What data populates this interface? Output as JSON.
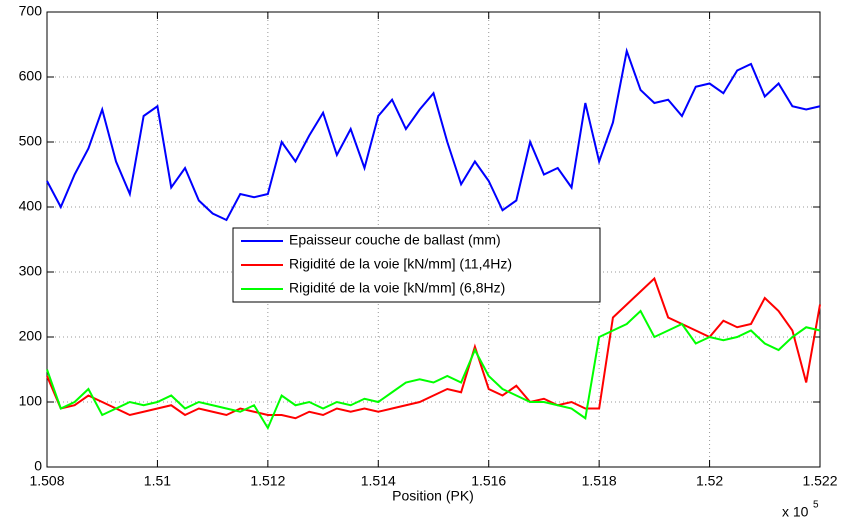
{
  "chart_data": {
    "type": "line",
    "xlabel": "Position (PK)",
    "x_multiplier": {
      "base": "x 10",
      "exponent": "5"
    },
    "x": [
      1.508,
      1.50825,
      1.5085,
      1.50875,
      1.509,
      1.50925,
      1.5095,
      1.50975,
      1.51,
      1.51025,
      1.5105,
      1.51075,
      1.511,
      1.51125,
      1.5115,
      1.51175,
      1.512,
      1.51225,
      1.5125,
      1.51275,
      1.513,
      1.51325,
      1.5135,
      1.51375,
      1.514,
      1.51425,
      1.5145,
      1.51475,
      1.515,
      1.51525,
      1.5155,
      1.51575,
      1.516,
      1.51625,
      1.5165,
      1.51675,
      1.517,
      1.51725,
      1.5175,
      1.51775,
      1.518,
      1.51825,
      1.5185,
      1.51875,
      1.519,
      1.51925,
      1.5195,
      1.51975,
      1.52,
      1.52025,
      1.5205,
      1.52075,
      1.521,
      1.52125,
      1.5215,
      1.52175,
      1.522
    ],
    "series": [
      {
        "name": "Epaisseur couche de ballast (mm)",
        "color": "#0000ff",
        "values": [
          440,
          400,
          450,
          490,
          550,
          470,
          420,
          540,
          555,
          430,
          460,
          410,
          390,
          380,
          420,
          415,
          420,
          500,
          470,
          510,
          545,
          480,
          520,
          460,
          540,
          565,
          520,
          550,
          575,
          500,
          435,
          470,
          440,
          395,
          410,
          500,
          450,
          460,
          430,
          560,
          470,
          530,
          640,
          580,
          560,
          565,
          540,
          585,
          590,
          575,
          610,
          620,
          570,
          590,
          555,
          550,
          555
        ]
      },
      {
        "name": "Rigidité de la voie [kN/mm] (11,4Hz)",
        "color": "#ff0000",
        "values": [
          140,
          90,
          95,
          110,
          100,
          90,
          80,
          85,
          90,
          95,
          80,
          90,
          85,
          80,
          90,
          85,
          80,
          80,
          75,
          85,
          80,
          90,
          85,
          90,
          85,
          90,
          95,
          100,
          110,
          120,
          115,
          185,
          120,
          110,
          125,
          100,
          105,
          95,
          100,
          90,
          90,
          230,
          250,
          270,
          290,
          230,
          220,
          210,
          200,
          225,
          215,
          220,
          260,
          240,
          210,
          130,
          250
        ]
      },
      {
        "name": "Rigidité de la voie [kN/mm] (6,8Hz)",
        "color": "#00ff00",
        "values": [
          150,
          90,
          100,
          120,
          80,
          90,
          100,
          95,
          100,
          110,
          90,
          100,
          95,
          90,
          85,
          95,
          60,
          110,
          95,
          100,
          90,
          100,
          95,
          105,
          100,
          115,
          130,
          135,
          130,
          140,
          130,
          180,
          140,
          120,
          110,
          100,
          100,
          95,
          90,
          75,
          200,
          210,
          220,
          240,
          200,
          210,
          220,
          190,
          200,
          195,
          200,
          210,
          190,
          180,
          200,
          215,
          210
        ]
      }
    ],
    "xlim": [
      1.508,
      1.522
    ],
    "xticks": [
      1.508,
      1.51,
      1.512,
      1.514,
      1.516,
      1.518,
      1.52,
      1.522
    ],
    "ylim": [
      0,
      700
    ],
    "yticks": [
      0,
      100,
      200,
      300,
      400,
      500,
      600,
      700
    ],
    "grid": true,
    "legend": "center"
  }
}
